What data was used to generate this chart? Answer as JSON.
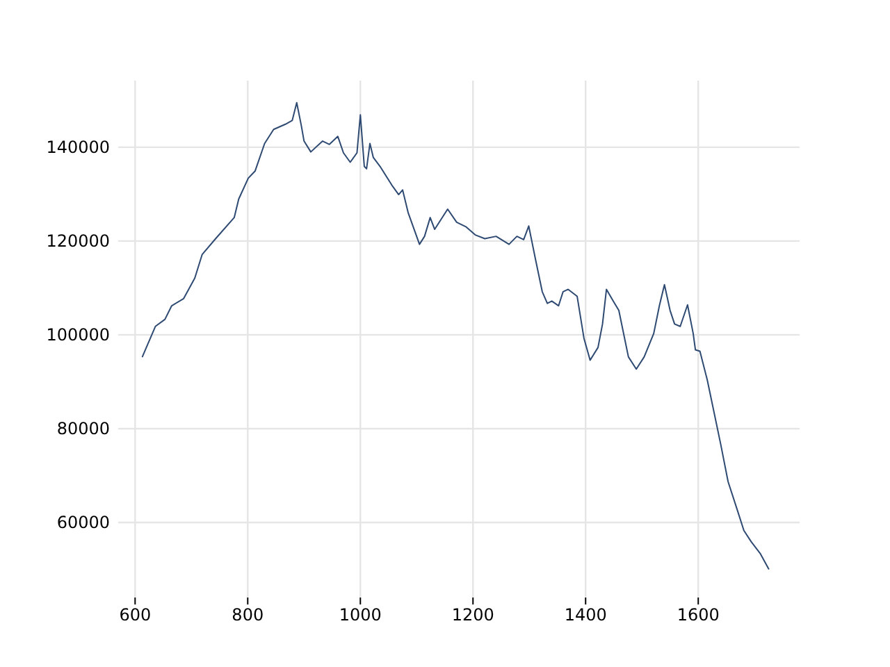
{
  "chart_data": {
    "type": "line",
    "xlim": [
      570,
      1780
    ],
    "ylim": [
      44000,
      154200
    ],
    "xticks": [
      600,
      800,
      1000,
      1200,
      1400,
      1600
    ],
    "yticks": [
      60000,
      80000,
      100000,
      120000,
      140000
    ],
    "grid": true,
    "series": [
      {
        "color": "#2e4a72",
        "x": [
          613,
          636,
          653,
          665,
          686,
          706,
          719,
          743,
          776,
          784,
          801,
          813,
          830,
          846,
          867,
          879,
          887,
          895,
          900,
          912,
          933,
          945,
          960,
          970,
          982,
          994,
          1000,
          1007,
          1011,
          1017,
          1023,
          1035,
          1056,
          1068,
          1075,
          1085,
          1105,
          1114,
          1124,
          1132,
          1155,
          1171,
          1188,
          1204,
          1221,
          1241,
          1264,
          1278,
          1290,
          1299,
          1311,
          1323,
          1332,
          1340,
          1352,
          1360,
          1369,
          1385,
          1397,
          1408,
          1422,
          1430,
          1437,
          1449,
          1459,
          1476,
          1490,
          1504,
          1521,
          1531,
          1540,
          1550,
          1558,
          1568,
          1581,
          1591,
          1595,
          1603,
          1616,
          1628,
          1640,
          1653,
          1669,
          1681,
          1694,
          1710,
          1725
        ],
        "values": [
          95350,
          101800,
          103300,
          106200,
          107700,
          112100,
          117100,
          120500,
          125000,
          128950,
          133400,
          134900,
          140800,
          143800,
          144900,
          145700,
          149500,
          144700,
          141300,
          139000,
          141300,
          140600,
          142300,
          138800,
          136800,
          138800,
          146900,
          135900,
          135400,
          140800,
          137800,
          135900,
          131900,
          129900,
          130900,
          126000,
          119300,
          121000,
          125000,
          122500,
          126800,
          124000,
          123000,
          121300,
          120500,
          121000,
          119300,
          121000,
          120300,
          123200,
          116100,
          109200,
          106700,
          107200,
          106200,
          109200,
          109700,
          108200,
          99300,
          94600,
          97300,
          102300,
          109700,
          107200,
          105200,
          95300,
          92700,
          95300,
          100300,
          106200,
          110700,
          105200,
          102300,
          101800,
          106400,
          100300,
          96800,
          96500,
          90400,
          83500,
          76600,
          68700,
          62800,
          58300,
          55900,
          53400,
          50100
        ]
      }
    ]
  }
}
